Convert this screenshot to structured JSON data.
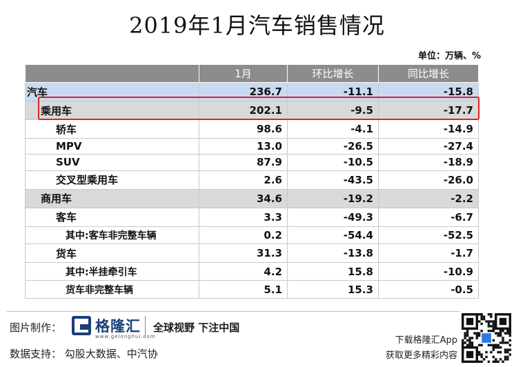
{
  "title": "2019年1月汽车销售情况",
  "unit": "单位：万辆、%",
  "chart_data": {
    "type": "table",
    "columns": [
      "",
      "1月",
      "环比增长",
      "同比增长"
    ],
    "rows": [
      {
        "name": "汽车",
        "level": 0,
        "values": [
          "236.7",
          "-11.1",
          "-15.8"
        ]
      },
      {
        "name": "乘用车",
        "level": 1,
        "values": [
          "202.1",
          "-9.5",
          "-17.7"
        ]
      },
      {
        "name": "轿车",
        "level": 2,
        "values": [
          "98.6",
          "-4.1",
          "-14.9"
        ]
      },
      {
        "name": "MPV",
        "level": 2,
        "values": [
          "13.0",
          "-26.5",
          "-27.4"
        ]
      },
      {
        "name": "SUV",
        "level": 2,
        "values": [
          "87.9",
          "-10.5",
          "-18.9"
        ]
      },
      {
        "name": "交叉型乘用车",
        "level": 2,
        "values": [
          "2.6",
          "-43.5",
          "-26.0"
        ]
      },
      {
        "name": "商用车",
        "level": 1,
        "values": [
          "34.6",
          "-19.2",
          "-2.2"
        ]
      },
      {
        "name": "客车",
        "level": 2,
        "values": [
          "3.3",
          "-49.3",
          "-6.7"
        ]
      },
      {
        "name": "其中:客车非完整车辆",
        "level": 3,
        "values": [
          "0.2",
          "-54.4",
          "-52.5"
        ]
      },
      {
        "name": "货车",
        "level": 2,
        "values": [
          "31.3",
          "-13.8",
          "-1.7"
        ]
      },
      {
        "name": "其中:半挂牵引车",
        "level": 3,
        "values": [
          "4.2",
          "15.8",
          "-10.9"
        ]
      },
      {
        "name": "货车非完整车辆",
        "level": 3,
        "values": [
          "5.1",
          "15.3",
          "-0.5"
        ]
      }
    ],
    "highlighted_row": "乘用车",
    "highlight_color": "#e02020"
  },
  "watermark": {
    "brand": "格隆汇",
    "url": "www.gelonghui.com"
  },
  "footer": {
    "credit_label": "图片制作：",
    "logo_name": "格隆汇",
    "logo_url": "www.gelonghui.com",
    "slogan": "全球视野 下注中国",
    "source": "数据支持：  勾股大数据、中汽协",
    "app_line1": "下载格隆汇App",
    "app_line2": "获取更多精彩内容"
  },
  "colors": {
    "header_bg": "#8c8c8c",
    "level0_bg": "#c9daf0",
    "level1_bg": "#d9d9d9",
    "brand": "#1a3f7a"
  }
}
